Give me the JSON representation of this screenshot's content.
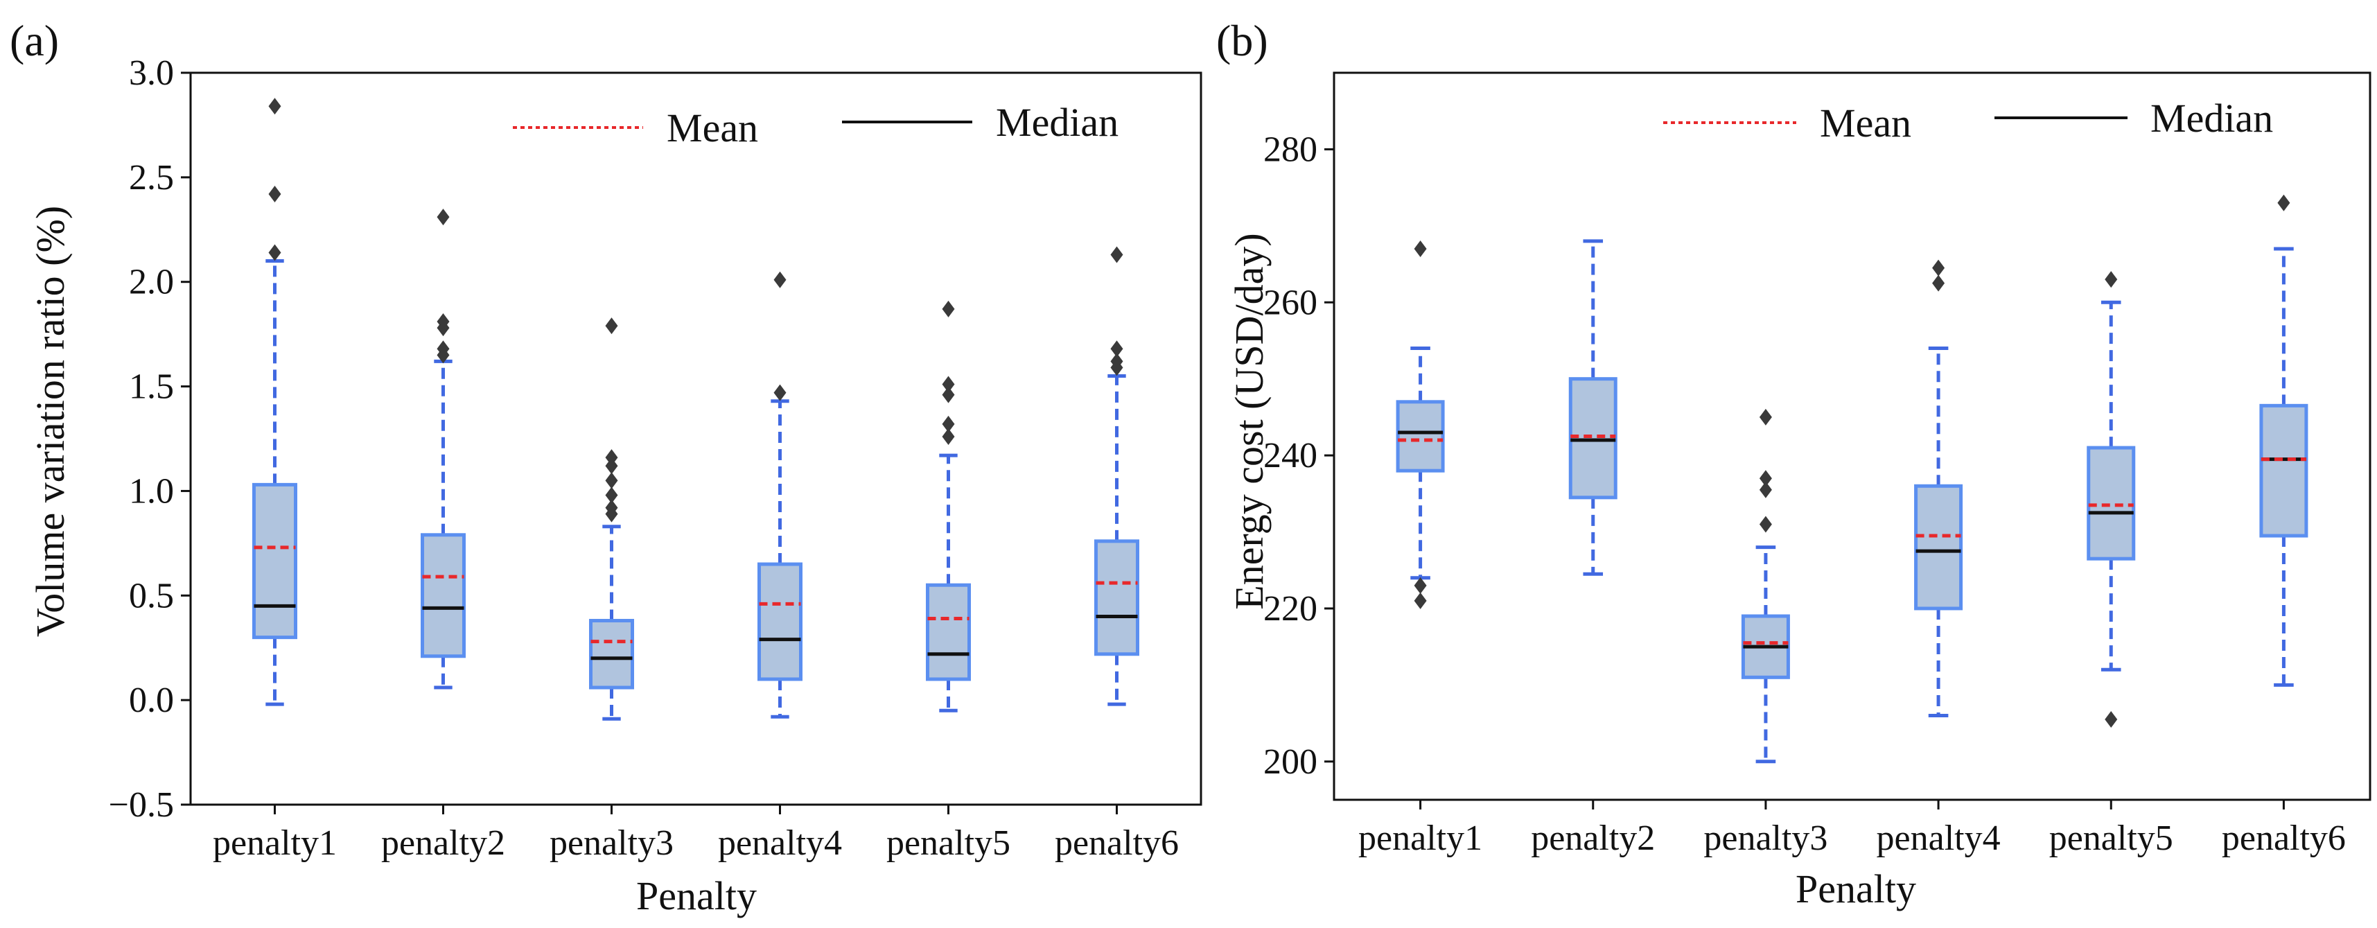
{
  "figure": {
    "colors": {
      "box_edge": "#5b8ff0",
      "box_fill": "#b0c4de",
      "whisker": "#4169e1",
      "mean": "#e8282b",
      "median": "#111111",
      "outlier": "#3a3a3a",
      "axis": "#111111"
    }
  },
  "chart_data": [
    {
      "type": "box",
      "panel_label": "(a)",
      "xlabel": "Penalty",
      "ylabel": "Volume variation ratio (%)",
      "ylim": [
        -0.5,
        3.0
      ],
      "yticks": [
        -0.5,
        0.0,
        0.5,
        1.0,
        1.5,
        2.0,
        2.5,
        3.0
      ],
      "ytick_labels": [
        "−0.5",
        "0.0",
        "0.5",
        "1.0",
        "1.5",
        "2.0",
        "2.5",
        "3.0"
      ],
      "categories": [
        "penalty1",
        "penalty2",
        "penalty3",
        "penalty4",
        "penalty5",
        "penalty6"
      ],
      "legend": {
        "mean_label": "Mean",
        "median_label": "Median",
        "position": "top-right"
      },
      "boxes": [
        {
          "whisker_low": -0.02,
          "q1": 0.3,
          "median": 0.45,
          "mean": 0.73,
          "q3": 1.03,
          "whisker_high": 2.1,
          "outliers": [
            2.14,
            2.42,
            2.84
          ]
        },
        {
          "whisker_low": 0.06,
          "q1": 0.21,
          "median": 0.44,
          "mean": 0.59,
          "q3": 0.79,
          "whisker_high": 1.62,
          "outliers": [
            1.65,
            1.68,
            1.78,
            1.81,
            2.31
          ]
        },
        {
          "whisker_low": -0.09,
          "q1": 0.06,
          "median": 0.2,
          "mean": 0.28,
          "q3": 0.38,
          "whisker_high": 0.83,
          "outliers": [
            0.89,
            0.92,
            0.98,
            1.05,
            1.12,
            1.16,
            1.79
          ]
        },
        {
          "whisker_low": -0.08,
          "q1": 0.1,
          "median": 0.29,
          "mean": 0.46,
          "q3": 0.65,
          "whisker_high": 1.43,
          "outliers": [
            1.47,
            2.01
          ]
        },
        {
          "whisker_low": -0.05,
          "q1": 0.1,
          "median": 0.22,
          "mean": 0.39,
          "q3": 0.55,
          "whisker_high": 1.17,
          "outliers": [
            1.26,
            1.32,
            1.46,
            1.51,
            1.87
          ]
        },
        {
          "whisker_low": -0.02,
          "q1": 0.22,
          "median": 0.4,
          "mean": 0.56,
          "q3": 0.76,
          "whisker_high": 1.55,
          "outliers": [
            1.59,
            1.62,
            1.68,
            2.13
          ]
        }
      ]
    },
    {
      "type": "box",
      "panel_label": "(b)",
      "xlabel": "Penalty",
      "ylabel": "Energy cost (USD/day)",
      "ylim": [
        195,
        290
      ],
      "yticks": [
        200,
        220,
        240,
        260,
        280
      ],
      "ytick_labels": [
        "200",
        "220",
        "240",
        "260",
        "280"
      ],
      "categories": [
        "penalty1",
        "penalty2",
        "penalty3",
        "penalty4",
        "penalty5",
        "penalty6"
      ],
      "legend": {
        "mean_label": "Mean",
        "median_label": "Median",
        "position": "top-right"
      },
      "boxes": [
        {
          "whisker_low": 224,
          "q1": 238,
          "median": 243,
          "mean": 242,
          "q3": 247,
          "whisker_high": 254,
          "outliers": [
            221,
            223,
            267
          ]
        },
        {
          "whisker_low": 224.5,
          "q1": 234.5,
          "median": 242,
          "mean": 242.5,
          "q3": 250,
          "whisker_high": 268,
          "outliers": []
        },
        {
          "whisker_low": 200,
          "q1": 211,
          "median": 215,
          "mean": 215.5,
          "q3": 219,
          "whisker_high": 228,
          "outliers": [
            231,
            235.5,
            237,
            245
          ]
        },
        {
          "whisker_low": 206,
          "q1": 220,
          "median": 227.5,
          "mean": 229.5,
          "q3": 236,
          "whisker_high": 254,
          "outliers": [
            262.5,
            264.5
          ]
        },
        {
          "whisker_low": 212,
          "q1": 226.5,
          "median": 232.5,
          "mean": 233.5,
          "q3": 241,
          "whisker_high": 260,
          "outliers": [
            205.5,
            263
          ]
        },
        {
          "whisker_low": 210,
          "q1": 229.5,
          "median": 239.5,
          "mean": 239.5,
          "q3": 246.5,
          "whisker_high": 267,
          "outliers": [
            273
          ]
        }
      ]
    }
  ]
}
